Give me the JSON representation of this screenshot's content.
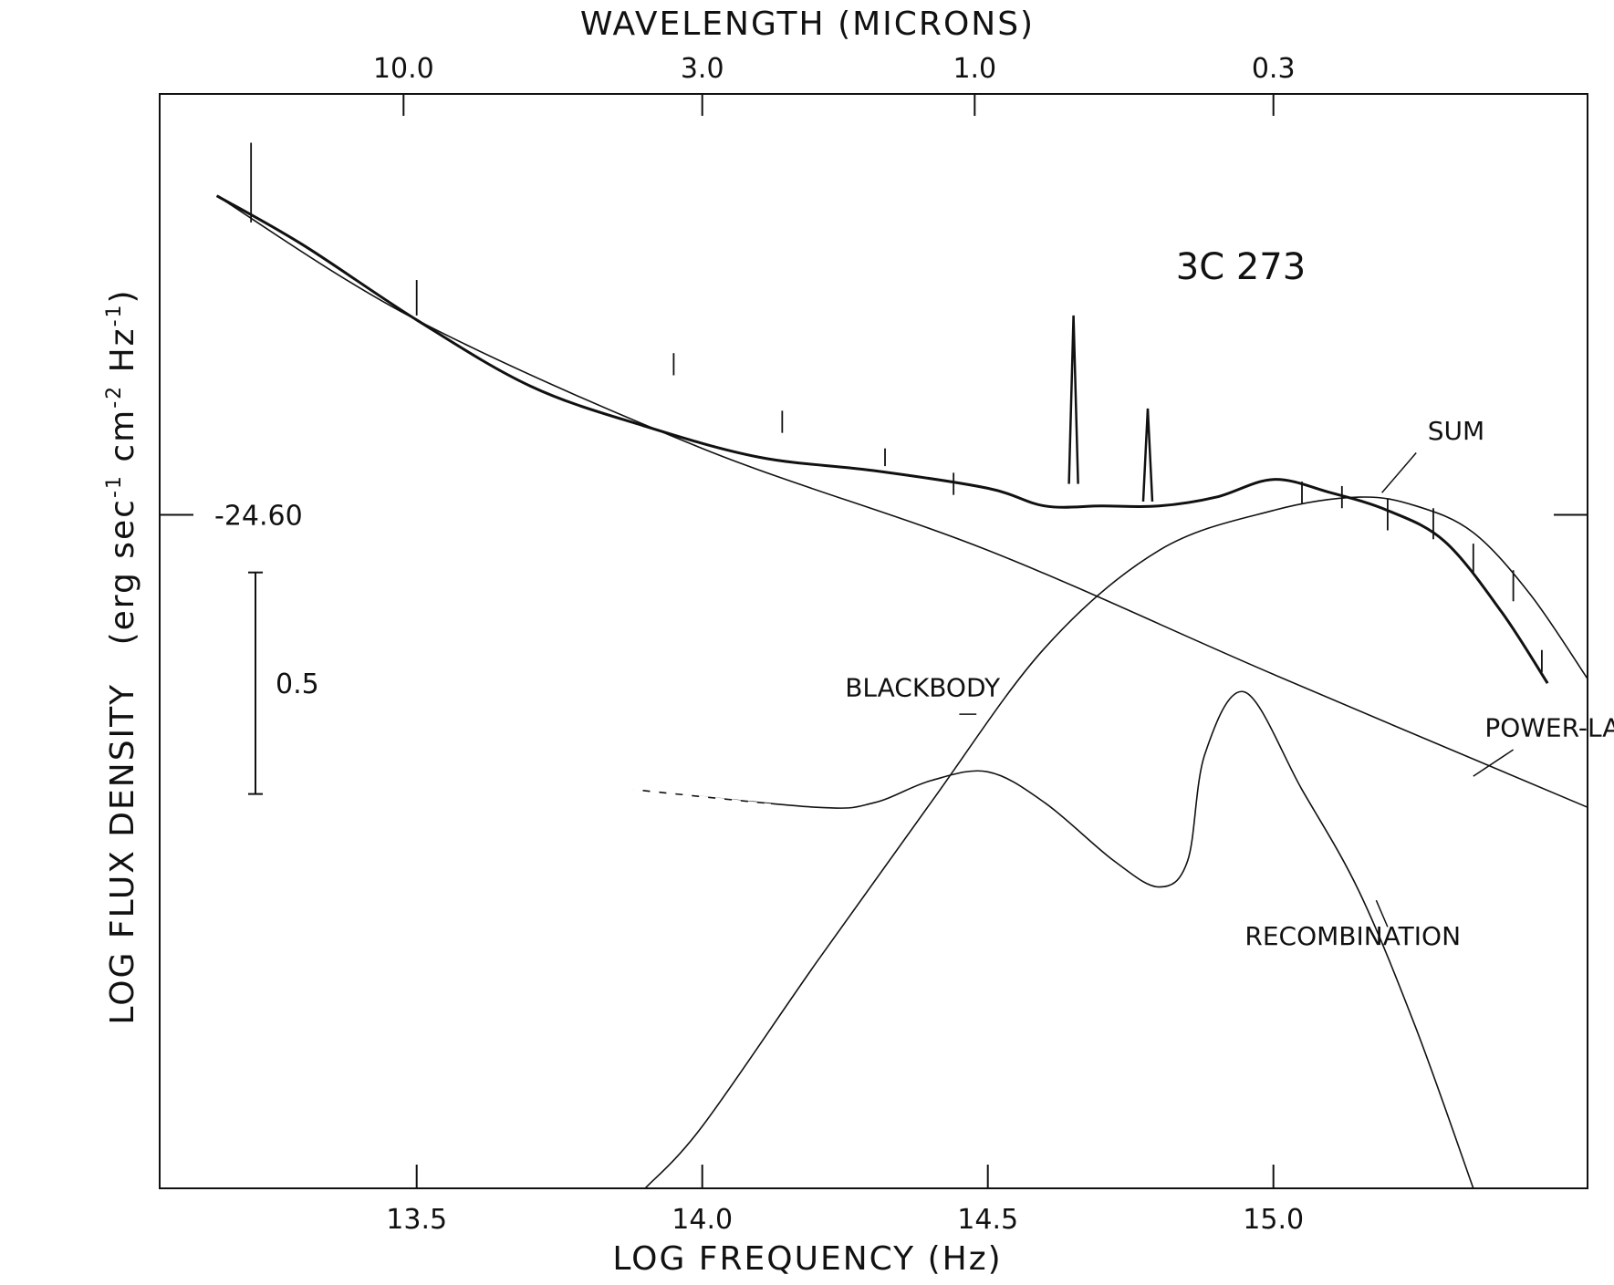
{
  "chart_data": {
    "type": "line",
    "title": "3C 273",
    "xlabel": "LOG FREQUENCY (Hz)",
    "ylabel": "LOG FLUX DENSITY (erg sec-1 cm-2 Hz-1)",
    "ylabel_parts": {
      "main": "LOG FLUX DENSITY",
      "unit_open": "(erg sec",
      "sup1": "-1",
      "mid1": " cm",
      "sup2": "-2",
      "mid2": " Hz",
      "sup3": "-1",
      "close": ")"
    },
    "top_axis_label": "WAVELENGTH (MICRONS)",
    "xlim": [
      13.05,
      15.55
    ],
    "ylim": [
      -26.12,
      -23.65
    ],
    "x_ticks": [
      {
        "value": 13.5,
        "label": "13.5"
      },
      {
        "value": 14.0,
        "label": "14.0"
      },
      {
        "value": 14.5,
        "label": "14.5"
      },
      {
        "value": 15.0,
        "label": "15.0"
      }
    ],
    "top_ticks": [
      {
        "value": 13.477,
        "label": "10.0"
      },
      {
        "value": 14.0,
        "label": "3.0"
      },
      {
        "value": 14.477,
        "label": "1.0"
      },
      {
        "value": 15.0,
        "label": "0.3"
      }
    ],
    "y_reference": {
      "value": -24.6,
      "label": "-24.60"
    },
    "scale_bar": {
      "length": 0.5,
      "label": "0.5"
    },
    "series": [
      {
        "name": "SUM",
        "x": [
          13.15,
          13.3,
          13.5,
          13.7,
          13.9,
          14.1,
          14.3,
          14.5,
          14.6,
          14.7,
          14.8,
          14.9,
          15.0,
          15.1,
          15.2,
          15.3,
          15.4,
          15.48
        ],
        "y": [
          -23.88,
          -23.99,
          -24.16,
          -24.31,
          -24.4,
          -24.47,
          -24.5,
          -24.54,
          -24.58,
          -24.58,
          -24.58,
          -24.56,
          -24.52,
          -24.55,
          -24.59,
          -24.66,
          -24.82,
          -24.98
        ]
      },
      {
        "name": "POWER-LAW",
        "x": [
          13.15,
          13.5,
          14.0,
          14.5,
          15.0,
          15.55
        ],
        "y": [
          -23.88,
          -24.16,
          -24.45,
          -24.68,
          -24.96,
          -25.26
        ]
      },
      {
        "name": "BLACKBODY",
        "x": [
          13.9,
          14.0,
          14.2,
          14.4,
          14.6,
          14.8,
          15.0,
          15.15,
          15.25,
          15.35,
          15.45,
          15.55
        ],
        "y": [
          -26.12,
          -25.98,
          -25.61,
          -25.25,
          -24.9,
          -24.68,
          -24.59,
          -24.56,
          -24.58,
          -24.64,
          -24.78,
          -24.97
        ]
      },
      {
        "name": "RECOMBINATION",
        "x": [
          13.88,
          14.2,
          14.3,
          14.4,
          14.5,
          14.6,
          14.72,
          14.8,
          14.85,
          14.88,
          14.95,
          15.05,
          15.15,
          15.25,
          15.35
        ],
        "y": [
          -25.22,
          -25.26,
          -25.25,
          -25.2,
          -25.18,
          -25.25,
          -25.38,
          -25.44,
          -25.38,
          -25.14,
          -25.0,
          -25.22,
          -25.45,
          -25.76,
          -26.12
        ]
      }
    ],
    "annotations": [
      {
        "label": "SUM",
        "x": 15.27,
        "y": -24.43
      },
      {
        "label": "POWER-LAW",
        "x": 15.37,
        "y": -25.1
      },
      {
        "label": "BLACKBODY",
        "x": 14.25,
        "y": -25.01
      },
      {
        "label": "RECOMBINATION",
        "x": 14.95,
        "y": -25.57
      }
    ]
  }
}
